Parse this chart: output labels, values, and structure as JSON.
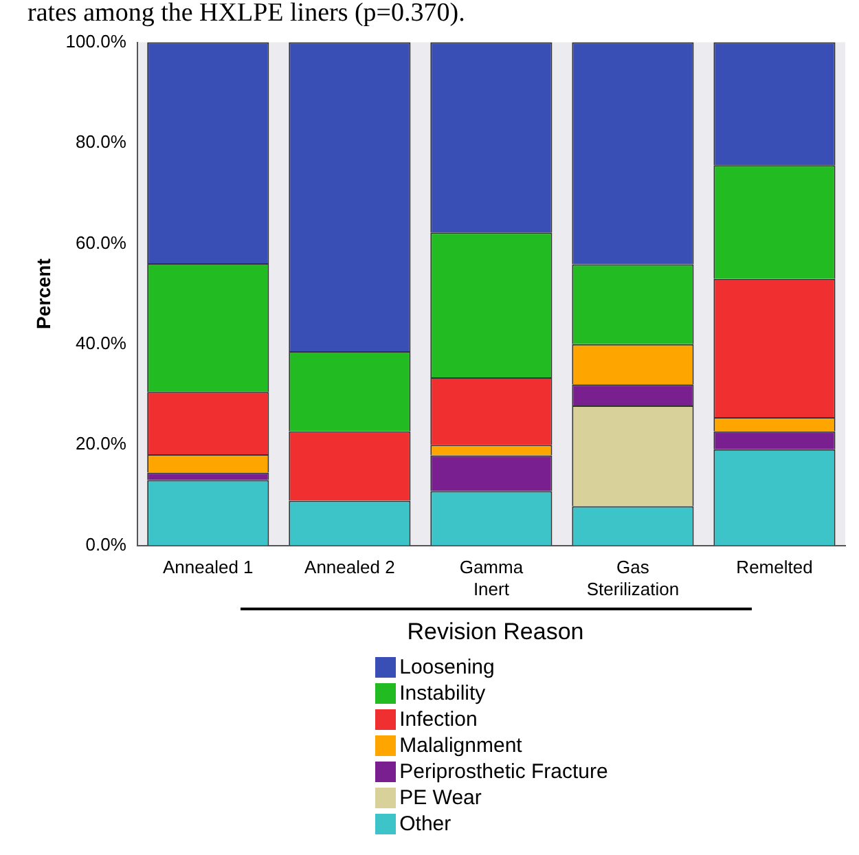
{
  "chart_data": {
    "type": "bar",
    "stacked": true,
    "annotations": [
      "rates among the HXLPE liners (p=0.370)."
    ],
    "ylabel": "Percent",
    "legend_title": "Revision Reason",
    "legend": "bottom",
    "categories": [
      "Annealed 1",
      "Annealed 2",
      "Gamma Inert",
      "Gas Sterilization",
      "Remelted"
    ],
    "ylim": [
      0,
      100
    ],
    "yticks": [
      {
        "value": 0,
        "label": "0.0%"
      },
      {
        "value": 20,
        "label": "20.0%"
      },
      {
        "value": 40,
        "label": "40.0%"
      },
      {
        "value": 60,
        "label": "60.0%"
      },
      {
        "value": 80,
        "label": "80.0%"
      },
      {
        "value": 100,
        "label": "100.0%"
      }
    ],
    "series": [
      {
        "name": "Other",
        "color": "#3cc4c8",
        "values": [
          13.0,
          8.9,
          10.8,
          7.8,
          19.1
        ]
      },
      {
        "name": "PE Wear",
        "color": "#d8d19a",
        "values": [
          0,
          0,
          0,
          20.0,
          0
        ]
      },
      {
        "name": "Periprosthetic Fracture",
        "color": "#7a1f90",
        "values": [
          1.5,
          0,
          7.1,
          4.2,
          3.6
        ]
      },
      {
        "name": "Malalignment",
        "color": "#ffa500",
        "values": [
          3.6,
          0,
          2.1,
          8.0,
          2.8
        ]
      },
      {
        "name": "Infection",
        "color": "#f03030",
        "values": [
          12.4,
          13.8,
          13.4,
          0,
          27.5
        ]
      },
      {
        "name": "Instability",
        "color": "#22bb22",
        "values": [
          25.6,
          15.9,
          28.8,
          15.9,
          22.6
        ]
      },
      {
        "name": "Loosening",
        "color": "#3a4fb5",
        "values": [
          43.9,
          61.4,
          37.8,
          44.1,
          24.4
        ]
      }
    ]
  }
}
